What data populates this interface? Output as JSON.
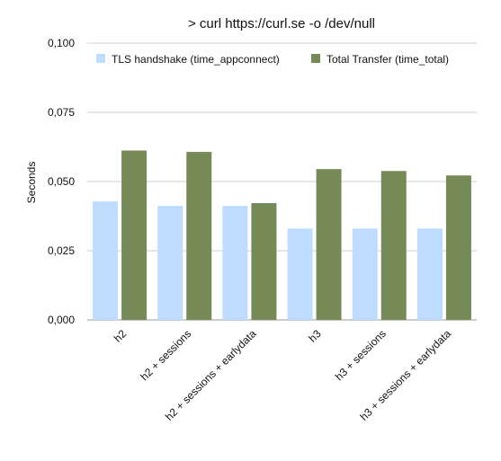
{
  "chart_data": {
    "type": "bar",
    "title": "> curl https://curl.se -o /dev/null",
    "xlabel": "",
    "ylabel": "Seconds",
    "ylim": [
      0,
      0.1
    ],
    "yticks": [
      "0,000",
      "0,025",
      "0,050",
      "0,075",
      "0,100"
    ],
    "categories": [
      "h2",
      "h2 + sessions",
      "h2 + sessions + earlydata",
      "h3",
      "h3 + sessions",
      "h3 + sessions + earlydata"
    ],
    "series": [
      {
        "name": "TLS handshake (time_appconnect)",
        "color": "#bedcff",
        "values": [
          0.0428,
          0.0412,
          0.0412,
          0.033,
          0.033,
          0.033
        ]
      },
      {
        "name": "Total Transfer (time_total)",
        "color": "#768a58",
        "values": [
          0.0612,
          0.0607,
          0.0422,
          0.0545,
          0.0538,
          0.0522
        ]
      }
    ],
    "grid": true,
    "legend_position": "top"
  }
}
